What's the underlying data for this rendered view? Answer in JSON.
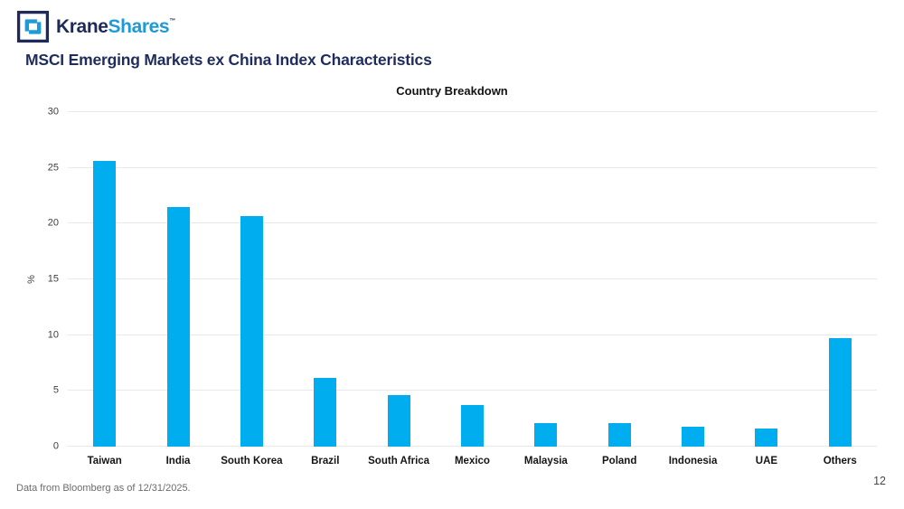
{
  "header": {
    "logo": {
      "brand_part1": "Krane",
      "brand_part2": "Shares",
      "trademark": "™"
    },
    "page_title": "MSCI Emerging Markets ex China Index Characteristics"
  },
  "chart_data": {
    "type": "bar",
    "title": "Country Breakdown",
    "xlabel": "",
    "ylabel": "%",
    "ylim": [
      0,
      30
    ],
    "yticks": [
      0,
      5,
      10,
      15,
      20,
      25,
      30
    ],
    "grid": true,
    "legend": "none",
    "bar_color": "#00AEEF",
    "categories": [
      "Taiwan",
      "India",
      "South Korea",
      "Brazil",
      "South Africa",
      "Mexico",
      "Malaysia",
      "Poland",
      "Indonesia",
      "UAE",
      "Others"
    ],
    "values": [
      25.6,
      21.5,
      20.7,
      6.2,
      4.6,
      3.7,
      2.1,
      2.1,
      1.8,
      1.6,
      9.7
    ]
  },
  "colors": {
    "brand_navy": "#1E2A58",
    "brand_blue": "#1E9BD7",
    "title_navy": "#1F2D5E",
    "gridline": "#e8e8e8"
  },
  "footer": {
    "source_note": "Data from Bloomberg as of 12/31/2025.",
    "page_number": "12"
  }
}
